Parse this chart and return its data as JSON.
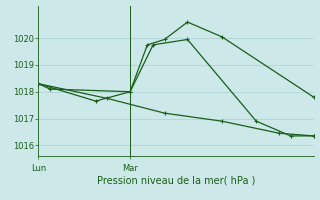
{
  "title": "Pression niveau de la mer( hPa )",
  "background_color": "#cce8e8",
  "line_color": "#1a5e1a",
  "grid_color": "#b0d4d4",
  "yticks": [
    1016,
    1017,
    1018,
    1019,
    1020
  ],
  "ylim": [
    1015.6,
    1021.2
  ],
  "xlim": [
    0,
    24
  ],
  "xtick_positions": [
    0,
    8
  ],
  "xtick_labels": [
    "Lun",
    "Mar"
  ],
  "vline_x": 8,
  "series1_x": [
    0,
    1,
    8,
    9.5,
    11,
    13,
    16,
    24
  ],
  "series1_y": [
    1018.3,
    1018.1,
    1018.0,
    1019.75,
    1019.95,
    1020.6,
    1020.05,
    1017.8
  ],
  "series2_x": [
    0,
    5,
    8,
    10,
    13,
    19,
    22,
    24
  ],
  "series2_y": [
    1018.3,
    1017.65,
    1018.0,
    1019.75,
    1019.95,
    1016.9,
    1016.35,
    1016.35
  ],
  "series3_x": [
    0,
    6,
    11,
    16,
    21,
    24
  ],
  "series3_y": [
    1018.3,
    1017.75,
    1017.2,
    1016.9,
    1016.45,
    1016.35
  ],
  "marker_size": 3.0,
  "linewidth": 0.9,
  "title_fontsize": 7,
  "tick_fontsize": 6
}
